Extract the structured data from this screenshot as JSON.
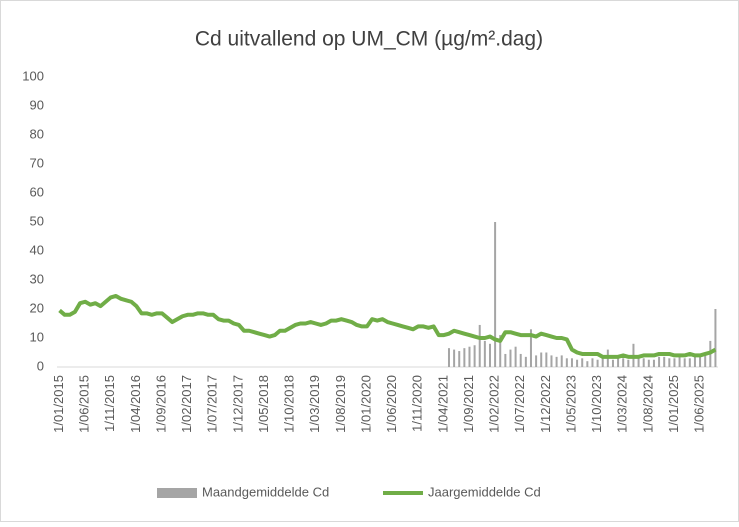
{
  "chart_data": {
    "type": "bar-line",
    "title": "Cd uitvallend op UM_CM (µg/m².dag)",
    "categories": [
      "1/01/2015",
      null,
      null,
      null,
      null,
      "1/06/2015",
      null,
      null,
      null,
      null,
      "1/11/2015",
      null,
      null,
      null,
      null,
      "1/04/2016",
      null,
      null,
      null,
      null,
      "1/09/2016",
      null,
      null,
      null,
      null,
      "1/02/2017",
      null,
      null,
      null,
      null,
      "1/07/2017",
      null,
      null,
      null,
      null,
      "1/12/2017",
      null,
      null,
      null,
      null,
      "1/05/2018",
      null,
      null,
      null,
      null,
      "1/10/2018",
      null,
      null,
      null,
      null,
      "1/03/2019",
      null,
      null,
      null,
      null,
      "1/08/2019",
      null,
      null,
      null,
      null,
      "1/01/2020",
      null,
      null,
      null,
      null,
      "1/06/2020",
      null,
      null,
      null,
      null,
      "1/11/2020",
      null,
      null,
      null,
      null,
      "1/04/2021",
      null,
      null,
      null,
      null,
      "1/09/2021",
      null,
      null,
      null,
      null,
      "1/02/2022",
      null,
      null,
      null,
      null,
      "1/07/2022",
      null,
      null,
      null,
      null,
      "1/12/2022",
      null,
      null,
      null,
      null,
      "1/05/2023",
      null,
      null,
      null,
      null,
      "1/10/2023",
      null,
      null,
      null,
      null,
      "1/03/2024",
      null,
      null,
      null,
      null,
      "1/08/2024",
      null,
      null,
      null,
      null,
      "1/01/2025",
      null,
      null,
      null,
      null,
      "1/06/2025",
      null,
      null,
      null
    ],
    "series": [
      {
        "name": "Maandgemiddelde Cd",
        "type": "bar",
        "color": "#a5a5a5",
        "values": [
          null,
          null,
          null,
          null,
          null,
          null,
          null,
          null,
          null,
          null,
          null,
          null,
          null,
          null,
          null,
          null,
          null,
          null,
          null,
          null,
          null,
          null,
          null,
          null,
          null,
          null,
          null,
          null,
          null,
          null,
          null,
          null,
          null,
          null,
          null,
          null,
          null,
          null,
          null,
          null,
          null,
          null,
          null,
          null,
          null,
          null,
          null,
          null,
          null,
          null,
          null,
          null,
          null,
          null,
          null,
          null,
          null,
          null,
          null,
          null,
          null,
          null,
          null,
          null,
          null,
          null,
          null,
          null,
          null,
          null,
          null,
          null,
          null,
          null,
          null,
          null,
          6.5,
          6,
          5.5,
          6.5,
          7,
          7.5,
          14.5,
          9,
          8,
          50,
          11,
          4.5,
          6,
          7,
          4.5,
          3.5,
          13,
          4,
          5,
          5,
          4,
          3.5,
          4,
          3,
          3,
          2.5,
          3,
          2,
          3,
          2.5,
          3,
          6,
          2.5,
          3,
          3,
          2.5,
          8,
          3,
          3,
          2.5,
          2.5,
          3.5,
          3.5,
          3,
          3,
          4,
          3,
          3,
          3.5,
          3.5,
          4,
          9,
          20
        ]
      },
      {
        "name": "Jaargemiddelde Cd",
        "type": "line",
        "color": "#70ad47",
        "values": [
          19.5,
          18,
          18,
          19,
          22,
          22.5,
          21.5,
          22,
          21,
          22.5,
          24,
          24.5,
          23.5,
          23,
          22.5,
          21,
          18.5,
          18.5,
          18,
          18.5,
          18.5,
          17,
          15.5,
          16.5,
          17.5,
          18,
          18,
          18.5,
          18.5,
          18,
          18,
          16.5,
          16,
          16,
          15,
          14.5,
          12.5,
          12.5,
          12,
          11.5,
          11,
          10.5,
          11,
          12.5,
          12.5,
          13.5,
          14.5,
          15,
          15,
          15.5,
          15,
          14.5,
          15,
          16,
          16,
          16.5,
          16,
          15.5,
          14.5,
          14,
          14,
          16.5,
          16,
          16.5,
          15.5,
          15,
          14.5,
          14,
          13.5,
          13,
          14,
          14,
          13.5,
          14,
          11,
          11,
          11.5,
          12.5,
          12,
          11.5,
          11,
          10.5,
          10,
          10,
          10.5,
          9.5,
          9,
          12,
          12,
          11.5,
          11,
          11,
          11,
          10.5,
          11.5,
          11,
          10.5,
          10,
          10,
          9.5,
          6,
          5,
          4.5,
          4.5,
          4.5,
          4.5,
          3.5,
          3.5,
          3.5,
          3.5,
          4,
          3.5,
          3.5,
          3.5,
          4,
          4,
          4,
          4.5,
          4.5,
          4.5,
          4,
          4,
          4,
          4.5,
          4,
          4,
          4.5,
          5,
          6
        ]
      }
    ],
    "ylim": [
      0,
      100
    ],
    "yticks": [
      0,
      10,
      20,
      30,
      40,
      50,
      60,
      70,
      80,
      90,
      100
    ],
    "grid": false,
    "legend": "bottom"
  }
}
